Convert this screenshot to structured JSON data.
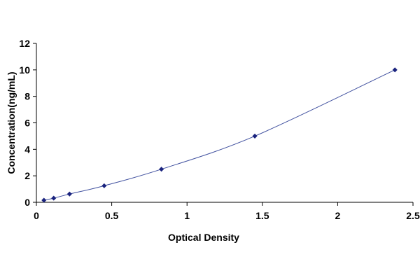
{
  "chart_data": {
    "type": "scatter",
    "title": "",
    "xlabel": "Optical Density",
    "ylabel": "Concentration(ng/mL)",
    "xlim": [
      0,
      2.5
    ],
    "ylim": [
      0,
      12
    ],
    "x_ticks": [
      0,
      0.5,
      1,
      1.5,
      2,
      2.5
    ],
    "x_tick_labels": [
      "0",
      "0.5",
      "1",
      "1.5",
      "2",
      "2.5"
    ],
    "y_ticks": [
      0,
      2,
      4,
      6,
      8,
      10,
      12
    ],
    "y_tick_labels": [
      "0",
      "2",
      "4",
      "6",
      "8",
      "10",
      "12"
    ],
    "grid": false,
    "legend": "none",
    "series": [
      {
        "x": [
          0.05,
          0.115,
          0.22,
          0.45,
          0.83,
          1.45,
          2.38
        ],
        "y": [
          0.156,
          0.312,
          0.625,
          1.25,
          2.5,
          5.0,
          10.0
        ],
        "fit_line": true
      }
    ],
    "colors": {
      "marker": "#1a237e",
      "line": "#3f4f9e",
      "axis": "#000000"
    }
  }
}
